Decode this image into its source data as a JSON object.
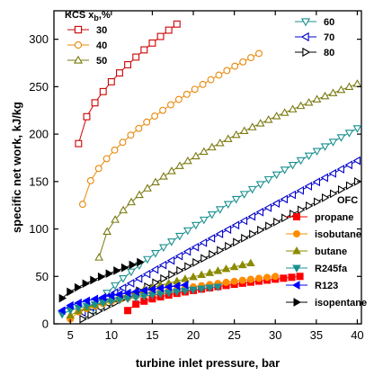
{
  "chart_data": {
    "type": "scatter",
    "xlabel": "turbine inlet pressure, bar",
    "ylabel": "specific net work, kJ/kg",
    "xlim": [
      3,
      40.5
    ],
    "ylim": [
      0,
      330
    ],
    "xticks": [
      5,
      10,
      15,
      20,
      25,
      30,
      35,
      40
    ],
    "yticks": [
      0,
      50,
      100,
      150,
      200,
      250,
      300
    ],
    "grid": false,
    "legends": [
      {
        "title": "KCS x",
        "title_sub": "b",
        "title_suffix": ",%",
        "placement": "top-left",
        "entries": [
          "30",
          "40",
          "50"
        ]
      },
      {
        "title": "",
        "placement": "top-right",
        "entries": [
          "60",
          "70",
          "80"
        ]
      },
      {
        "title": "OFC",
        "placement": "right",
        "entries": [
          "propane",
          "isobutane",
          "butane",
          "R245fa",
          "R123",
          "isopentane"
        ]
      }
    ],
    "series": [
      {
        "name": "30",
        "group": "KCS",
        "marker": "square-open",
        "color": "#cc0000",
        "x": [
          6,
          18
        ],
        "y": [
          190,
          316
        ],
        "shape": 0.6
      },
      {
        "name": "40",
        "group": "KCS",
        "marker": "circle-open",
        "color": "#e8880a",
        "x": [
          6.5,
          28
        ],
        "y": [
          126,
          285
        ],
        "shape": 0.6
      },
      {
        "name": "50",
        "group": "KCS",
        "marker": "triangle-up-open",
        "color": "#7a7a10",
        "x": [
          8.5,
          40
        ],
        "y": [
          70,
          253
        ],
        "shape": 0.55
      },
      {
        "name": "60",
        "group": "KCS",
        "marker": "triangle-down-open",
        "color": "#1a8f8f",
        "x": [
          7.5,
          40
        ],
        "y": [
          12,
          206
        ],
        "shape": 0.8
      },
      {
        "name": "70",
        "group": "KCS",
        "marker": "triangle-left-open",
        "color": "#0000cc",
        "x": [
          6.5,
          40
        ],
        "y": [
          12,
          172
        ],
        "shape": 0.95
      },
      {
        "name": "80",
        "group": "KCS",
        "marker": "triangle-right-open",
        "color": "#000000",
        "x": [
          6.5,
          40
        ],
        "y": [
          5,
          150
        ],
        "shape": 1.0
      },
      {
        "name": "propane",
        "group": "OFC",
        "marker": "square-filled",
        "color": "#ff0000",
        "x": [
          12,
          33
        ],
        "y": [
          14,
          50
        ],
        "shape": 0.55
      },
      {
        "name": "isobutane",
        "group": "OFC",
        "marker": "circle-filled",
        "color": "#ff8c00",
        "x": [
          5,
          30
        ],
        "y": [
          5,
          50
        ],
        "shape": 0.55
      },
      {
        "name": "butane",
        "group": "OFC",
        "marker": "triangle-up-filled",
        "color": "#8b8b00",
        "x": [
          5,
          27
        ],
        "y": [
          9,
          64
        ],
        "shape": 0.8
      },
      {
        "name": "R245fa",
        "group": "OFC",
        "marker": "triangle-down-filled",
        "color": "#1a8f8f",
        "x": [
          4,
          23
        ],
        "y": [
          10,
          39
        ],
        "shape": 0.65
      },
      {
        "name": "R123",
        "group": "OFC",
        "marker": "triangle-left-filled",
        "color": "#0000ff",
        "x": [
          4,
          19
        ],
        "y": [
          14,
          41
        ],
        "shape": 0.6
      },
      {
        "name": "isopentane",
        "group": "OFC",
        "marker": "triangle-right-filled",
        "color": "#000000",
        "x": [
          4,
          13.5
        ],
        "y": [
          27,
          65
        ],
        "shape": 0.75
      }
    ]
  }
}
